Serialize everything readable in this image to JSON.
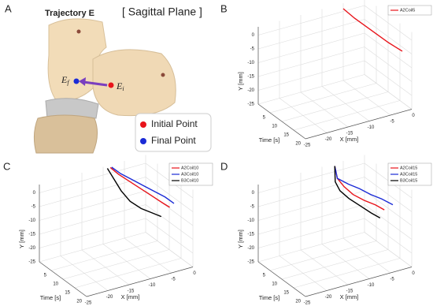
{
  "panel_a": {
    "label": "A",
    "title": "Trajectory E",
    "plane": "[ Sagittal Plane ]",
    "final_symbol": "E",
    "final_sub": "f",
    "initial_symbol": "E",
    "initial_sub": "i",
    "legend": [
      {
        "name": "Initial Point",
        "color": "#e8141b"
      },
      {
        "name": "Final Point",
        "color": "#1b2bd6"
      }
    ]
  },
  "chart_data": [
    {
      "type": "line3d",
      "label": "B",
      "x_label": "Time [s]",
      "z_label": "X [mm]",
      "y_label": "Y [mm]",
      "xlim": [
        0,
        20
      ],
      "xticks": [
        5,
        10,
        15,
        20
      ],
      "zlim": [
        -25,
        0
      ],
      "zticks": [
        -25,
        -20,
        -15,
        -10,
        -5,
        0
      ],
      "ylim": [
        -25,
        3
      ],
      "yticks": [
        0,
        -5,
        -10,
        -15,
        -20,
        -25
      ],
      "grid": true,
      "x": [
        0,
        3,
        6,
        9,
        12,
        14,
        16
      ],
      "series": [
        {
          "name": "A2Coil5",
          "color": "#e8141b",
          "depth": [
            -5,
            -4,
            -3,
            -2,
            -1,
            -0.5,
            0
          ],
          "values": [
            1,
            -1,
            -2.5,
            -4,
            -5.5,
            -6,
            -6.5
          ]
        }
      ]
    },
    {
      "type": "line3d",
      "label": "C",
      "x_label": "Time [s]",
      "z_label": "X [mm]",
      "y_label": "Y [mm]",
      "xlim": [
        0,
        20
      ],
      "xticks": [
        5,
        10,
        15,
        20
      ],
      "zlim": [
        -25,
        0
      ],
      "zticks": [
        -25,
        -20,
        -15,
        -10,
        -5,
        0
      ],
      "ylim": [
        -25,
        3
      ],
      "yticks": [
        0,
        -5,
        -10,
        -15,
        -20,
        -25
      ],
      "grid": true,
      "x": [
        0,
        2,
        4,
        6,
        8,
        10,
        12
      ],
      "series": [
        {
          "name": "A2Coil10",
          "color": "#e8141b",
          "depth": [
            -8.3,
            -7.5,
            -6,
            -4.5,
            -3,
            -1.5,
            -1
          ],
          "values": [
            2,
            0.5,
            -1.5,
            -3.5,
            -5.5,
            -7.5,
            -8
          ]
        },
        {
          "name": "A3Coil10",
          "color": "#1b2bd6",
          "depth": [
            -8,
            -7,
            -5.5,
            -4,
            -2.5,
            -1,
            0
          ],
          "values": [
            2,
            0.5,
            -1,
            -2.5,
            -4,
            -5.5,
            -7
          ]
        },
        {
          "name": "B3Coil10",
          "color": "#000000",
          "depth": [
            -9,
            -8.5,
            -8,
            -7,
            -5.5,
            -4,
            -3
          ],
          "values": [
            2,
            -1,
            -4,
            -7,
            -9,
            -10,
            -10.5
          ]
        }
      ]
    },
    {
      "type": "line3d",
      "label": "D",
      "x_label": "Time [s]",
      "z_label": "X [mm]",
      "y_label": "Y [mm]",
      "xlim": [
        0,
        20
      ],
      "xticks": [
        5,
        10,
        15,
        20
      ],
      "zlim": [
        -25,
        0
      ],
      "zticks": [
        -25,
        -20,
        -15,
        -10,
        -5,
        0
      ],
      "ylim": [
        -25,
        3
      ],
      "yticks": [
        0,
        -5,
        -10,
        -15,
        -20,
        -25
      ],
      "grid": true,
      "x": [
        0,
        2,
        4,
        6,
        8,
        10,
        12
      ],
      "series": [
        {
          "name": "A2Coil15",
          "color": "#e8141b",
          "depth": [
            -7,
            -7.5,
            -7,
            -6,
            -4.5,
            -3,
            -2
          ],
          "values": [
            2,
            -1,
            -3,
            -5,
            -6.5,
            -7.5,
            -8.5
          ]
        },
        {
          "name": "A3Coil15",
          "color": "#1b2bd6",
          "depth": [
            -7,
            -7.5,
            -6,
            -4.5,
            -3,
            -1.5,
            0
          ],
          "values": [
            2,
            -1,
            -2.5,
            -3.5,
            -5,
            -6,
            -7.5
          ]
        },
        {
          "name": "B3Coil15",
          "color": "#000000",
          "depth": [
            -7,
            -8,
            -8,
            -7,
            -5.5,
            -4,
            -3
          ],
          "values": [
            2,
            -2,
            -4,
            -6,
            -8,
            -10,
            -11
          ]
        }
      ]
    }
  ]
}
